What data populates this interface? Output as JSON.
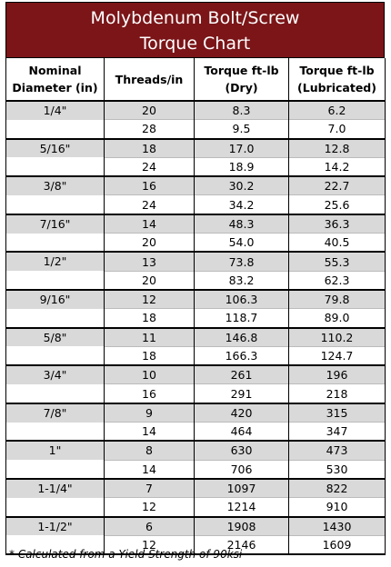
{
  "header": {
    "title_lines": [
      "Molybdenum Bolt/Screw",
      "Torque Chart"
    ]
  },
  "table": {
    "columns": [
      [
        "Nominal",
        "Diameter (in)"
      ],
      [
        "Threads/in"
      ],
      [
        "Torque ft-lb",
        "(Dry)"
      ],
      [
        "Torque ft-lb",
        "(Lubricated)"
      ]
    ],
    "groups": [
      {
        "diameter": "1/4\"",
        "rows": [
          [
            "20",
            "8.3",
            "6.2"
          ],
          [
            "28",
            "9.5",
            "7.0"
          ]
        ]
      },
      {
        "diameter": "5/16\"",
        "rows": [
          [
            "18",
            "17.0",
            "12.8"
          ],
          [
            "24",
            "18.9",
            "14.2"
          ]
        ]
      },
      {
        "diameter": "3/8\"",
        "rows": [
          [
            "16",
            "30.2",
            "22.7"
          ],
          [
            "24",
            "34.2",
            "25.6"
          ]
        ]
      },
      {
        "diameter": "7/16\"",
        "rows": [
          [
            "14",
            "48.3",
            "36.3"
          ],
          [
            "20",
            "54.0",
            "40.5"
          ]
        ]
      },
      {
        "diameter": "1/2\"",
        "rows": [
          [
            "13",
            "73.8",
            "55.3"
          ],
          [
            "20",
            "83.2",
            "62.3"
          ]
        ]
      },
      {
        "diameter": "9/16\"",
        "rows": [
          [
            "12",
            "106.3",
            "79.8"
          ],
          [
            "18",
            "118.7",
            "89.0"
          ]
        ]
      },
      {
        "diameter": "5/8\"",
        "rows": [
          [
            "11",
            "146.8",
            "110.2"
          ],
          [
            "18",
            "166.3",
            "124.7"
          ]
        ]
      },
      {
        "diameter": "3/4\"",
        "rows": [
          [
            "10",
            "261",
            "196"
          ],
          [
            "16",
            "291",
            "218"
          ]
        ]
      },
      {
        "diameter": "7/8\"",
        "rows": [
          [
            "9",
            "420",
            "315"
          ],
          [
            "14",
            "464",
            "347"
          ]
        ]
      },
      {
        "diameter": "1\"",
        "rows": [
          [
            "8",
            "630",
            "473"
          ],
          [
            "14",
            "706",
            "530"
          ]
        ]
      },
      {
        "diameter": "1-1/4\"",
        "rows": [
          [
            "7",
            "1097",
            "822"
          ],
          [
            "12",
            "1214",
            "910"
          ]
        ]
      },
      {
        "diameter": "1-1/2\"",
        "rows": [
          [
            "6",
            "1908",
            "1430"
          ],
          [
            "12",
            "2146",
            "1609"
          ]
        ]
      }
    ]
  },
  "footnote": "* Calculated from a Yield Strength of 90ksi"
}
